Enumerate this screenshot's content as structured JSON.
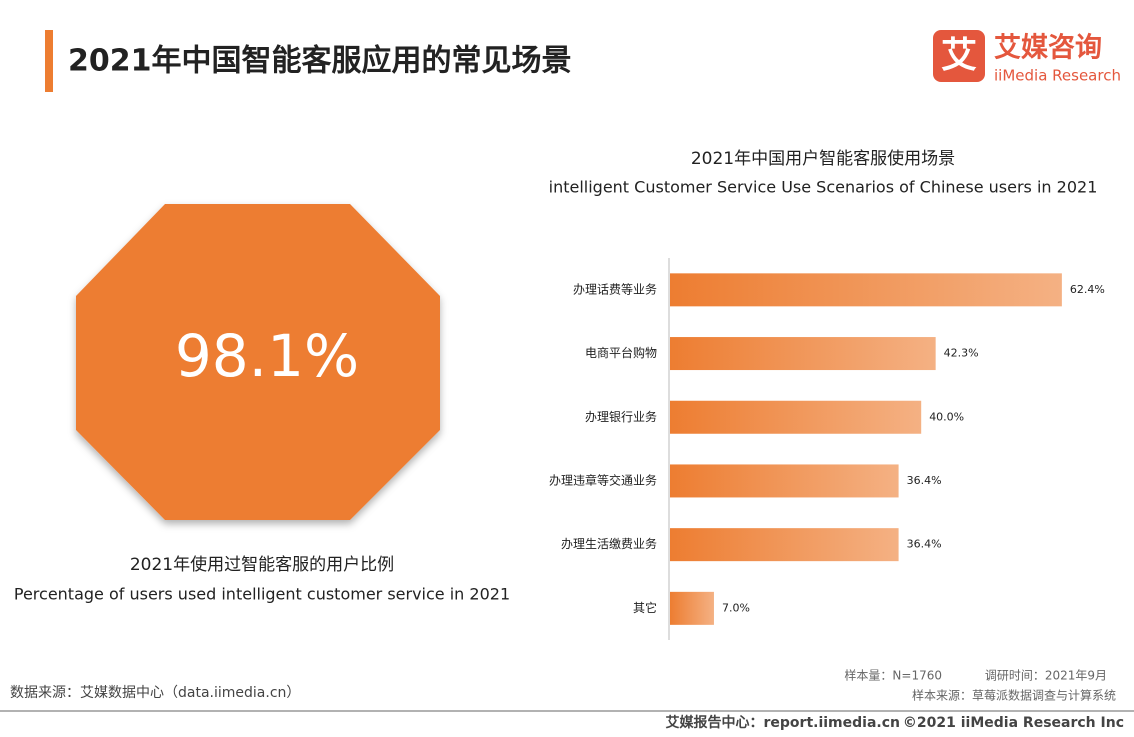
{
  "header": {
    "title": "2021年中国智能客服应用的常见场景"
  },
  "logo": {
    "icon": "艾",
    "name": "艾媒咨询",
    "name_en": "iiMedia Research"
  },
  "highlight": {
    "value": 98.1,
    "label": "98.1%",
    "caption": "2021年使用过智能客服的用户比例",
    "caption_en": "Percentage of users used intelligent customer service in 2021"
  },
  "chart_data": {
    "type": "bar",
    "orientation": "horizontal",
    "title": "2021年中国用户智能客服使用场景",
    "subtitle": "intelligent Customer Service Use Scenarios of Chinese users in 2021",
    "categories": [
      "办理话费等业务",
      "电商平台购物",
      "办理银行业务",
      "办理违章等交通业务",
      "办理生活缴费业务",
      "其它"
    ],
    "values": [
      62.4,
      42.3,
      40.0,
      36.4,
      36.4,
      7.0
    ],
    "value_labels": [
      "62.4%",
      "42.3%",
      "40.0%",
      "36.4%",
      "36.4%",
      "7.0%"
    ],
    "color": "#ed7d31"
  },
  "footer": {
    "source": "数据来源：艾媒数据中心（data.iimedia.cn）",
    "sample": "样本量：N=1760",
    "survey_time": "调研时间：2021年9月",
    "sample_source": "样本来源：草莓派数据调查与计算系统",
    "report_center": "艾媒报告中心：report.iimedia.cn",
    "copyright": "©2021  iiMedia Research  Inc"
  }
}
